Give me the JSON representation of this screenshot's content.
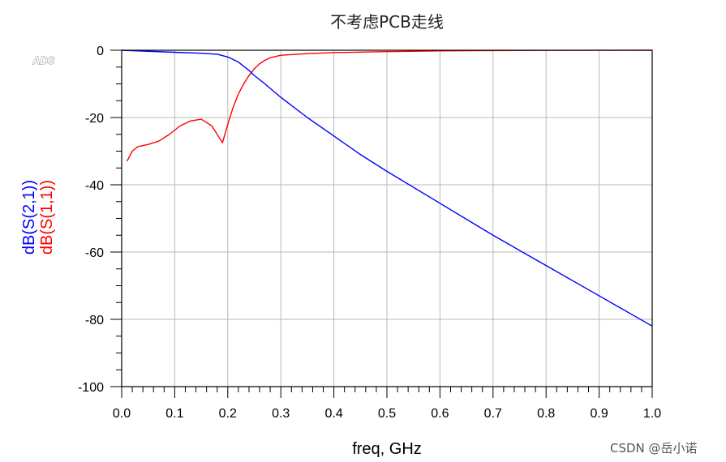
{
  "chart_data": {
    "type": "line",
    "title": "不考虑PCB走线",
    "xlabel": "freq, GHz",
    "ylabels": [
      "dB(S(2,1))",
      "dB(S(1,1))"
    ],
    "xlim": [
      0.0,
      1.0
    ],
    "ylim": [
      -100,
      0
    ],
    "xticks": [
      "0.0",
      "0.1",
      "0.2",
      "0.3",
      "0.4",
      "0.5",
      "0.6",
      "0.7",
      "0.8",
      "0.9",
      "1.0"
    ],
    "yticks": [
      "0",
      "-20",
      "-40",
      "-60",
      "-80",
      "-100"
    ],
    "grid": true,
    "series": [
      {
        "name": "dB(S(2,1))",
        "color": "#0000ff",
        "x": [
          0.0,
          0.05,
          0.1,
          0.15,
          0.18,
          0.2,
          0.22,
          0.24,
          0.25,
          0.27,
          0.3,
          0.35,
          0.4,
          0.45,
          0.5,
          0.6,
          0.7,
          0.8,
          0.9,
          1.0
        ],
        "y": [
          0.0,
          -0.3,
          -0.6,
          -0.9,
          -1.2,
          -2.0,
          -3.5,
          -6.0,
          -7.5,
          -10.0,
          -14.0,
          -20.0,
          -25.5,
          -31.0,
          -36.0,
          -45.5,
          -55.0,
          -64.0,
          -73.0,
          -82.0
        ]
      },
      {
        "name": "dB(S(1,1))",
        "color": "#ff0000",
        "x": [
          0.01,
          0.02,
          0.03,
          0.05,
          0.07,
          0.09,
          0.11,
          0.13,
          0.15,
          0.17,
          0.18,
          0.19,
          0.2,
          0.21,
          0.22,
          0.23,
          0.24,
          0.25,
          0.26,
          0.27,
          0.28,
          0.3,
          0.35,
          0.4,
          0.5,
          0.6,
          0.7,
          0.8,
          0.9,
          1.0
        ],
        "y": [
          -33.0,
          -30.0,
          -28.7,
          -28.0,
          -27.0,
          -25.0,
          -22.5,
          -21.0,
          -20.5,
          -22.5,
          -25.0,
          -27.5,
          -22.0,
          -17.0,
          -13.0,
          -10.0,
          -7.5,
          -5.5,
          -4.0,
          -3.0,
          -2.2,
          -1.5,
          -1.0,
          -0.7,
          -0.4,
          -0.2,
          -0.1,
          -0.05,
          -0.02,
          0.0
        ]
      }
    ]
  },
  "labels": {
    "ads": "ADS",
    "watermark": "CSDN @岳小诺"
  }
}
